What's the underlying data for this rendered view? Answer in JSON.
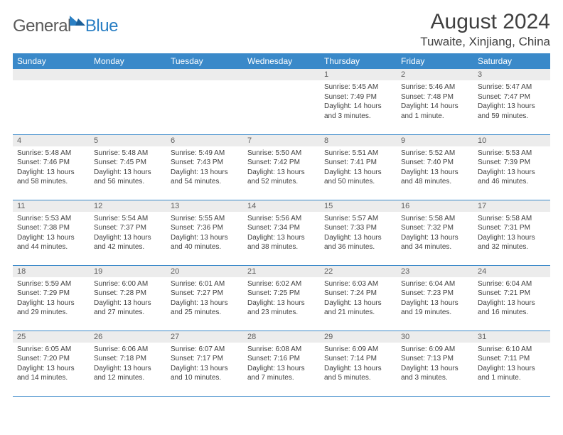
{
  "brand": {
    "part1": "General",
    "part2": "Blue"
  },
  "title": "August 2024",
  "location": "Tuwaite, Xinjiang, China",
  "colors": {
    "header_bg": "#3a89c9",
    "header_text": "#ffffff",
    "daynum_bg": "#ececec",
    "text": "#404040",
    "brand_gray": "#5a5a5a",
    "brand_blue": "#2a7fc4",
    "row_border": "#3a89c9"
  },
  "typography": {
    "title_fontsize": 30,
    "location_fontsize": 17,
    "weekday_fontsize": 12,
    "daynum_fontsize": 11,
    "body_fontsize": 10,
    "logo_fontsize": 24
  },
  "weekdays": [
    "Sunday",
    "Monday",
    "Tuesday",
    "Wednesday",
    "Thursday",
    "Friday",
    "Saturday"
  ],
  "weeks": [
    [
      {
        "n": "",
        "sr": "",
        "ss": "",
        "dl": ""
      },
      {
        "n": "",
        "sr": "",
        "ss": "",
        "dl": ""
      },
      {
        "n": "",
        "sr": "",
        "ss": "",
        "dl": ""
      },
      {
        "n": "",
        "sr": "",
        "ss": "",
        "dl": ""
      },
      {
        "n": "1",
        "sr": "Sunrise: 5:45 AM",
        "ss": "Sunset: 7:49 PM",
        "dl": "Daylight: 14 hours and 3 minutes."
      },
      {
        "n": "2",
        "sr": "Sunrise: 5:46 AM",
        "ss": "Sunset: 7:48 PM",
        "dl": "Daylight: 14 hours and 1 minute."
      },
      {
        "n": "3",
        "sr": "Sunrise: 5:47 AM",
        "ss": "Sunset: 7:47 PM",
        "dl": "Daylight: 13 hours and 59 minutes."
      }
    ],
    [
      {
        "n": "4",
        "sr": "Sunrise: 5:48 AM",
        "ss": "Sunset: 7:46 PM",
        "dl": "Daylight: 13 hours and 58 minutes."
      },
      {
        "n": "5",
        "sr": "Sunrise: 5:48 AM",
        "ss": "Sunset: 7:45 PM",
        "dl": "Daylight: 13 hours and 56 minutes."
      },
      {
        "n": "6",
        "sr": "Sunrise: 5:49 AM",
        "ss": "Sunset: 7:43 PM",
        "dl": "Daylight: 13 hours and 54 minutes."
      },
      {
        "n": "7",
        "sr": "Sunrise: 5:50 AM",
        "ss": "Sunset: 7:42 PM",
        "dl": "Daylight: 13 hours and 52 minutes."
      },
      {
        "n": "8",
        "sr": "Sunrise: 5:51 AM",
        "ss": "Sunset: 7:41 PM",
        "dl": "Daylight: 13 hours and 50 minutes."
      },
      {
        "n": "9",
        "sr": "Sunrise: 5:52 AM",
        "ss": "Sunset: 7:40 PM",
        "dl": "Daylight: 13 hours and 48 minutes."
      },
      {
        "n": "10",
        "sr": "Sunrise: 5:53 AM",
        "ss": "Sunset: 7:39 PM",
        "dl": "Daylight: 13 hours and 46 minutes."
      }
    ],
    [
      {
        "n": "11",
        "sr": "Sunrise: 5:53 AM",
        "ss": "Sunset: 7:38 PM",
        "dl": "Daylight: 13 hours and 44 minutes."
      },
      {
        "n": "12",
        "sr": "Sunrise: 5:54 AM",
        "ss": "Sunset: 7:37 PM",
        "dl": "Daylight: 13 hours and 42 minutes."
      },
      {
        "n": "13",
        "sr": "Sunrise: 5:55 AM",
        "ss": "Sunset: 7:36 PM",
        "dl": "Daylight: 13 hours and 40 minutes."
      },
      {
        "n": "14",
        "sr": "Sunrise: 5:56 AM",
        "ss": "Sunset: 7:34 PM",
        "dl": "Daylight: 13 hours and 38 minutes."
      },
      {
        "n": "15",
        "sr": "Sunrise: 5:57 AM",
        "ss": "Sunset: 7:33 PM",
        "dl": "Daylight: 13 hours and 36 minutes."
      },
      {
        "n": "16",
        "sr": "Sunrise: 5:58 AM",
        "ss": "Sunset: 7:32 PM",
        "dl": "Daylight: 13 hours and 34 minutes."
      },
      {
        "n": "17",
        "sr": "Sunrise: 5:58 AM",
        "ss": "Sunset: 7:31 PM",
        "dl": "Daylight: 13 hours and 32 minutes."
      }
    ],
    [
      {
        "n": "18",
        "sr": "Sunrise: 5:59 AM",
        "ss": "Sunset: 7:29 PM",
        "dl": "Daylight: 13 hours and 29 minutes."
      },
      {
        "n": "19",
        "sr": "Sunrise: 6:00 AM",
        "ss": "Sunset: 7:28 PM",
        "dl": "Daylight: 13 hours and 27 minutes."
      },
      {
        "n": "20",
        "sr": "Sunrise: 6:01 AM",
        "ss": "Sunset: 7:27 PM",
        "dl": "Daylight: 13 hours and 25 minutes."
      },
      {
        "n": "21",
        "sr": "Sunrise: 6:02 AM",
        "ss": "Sunset: 7:25 PM",
        "dl": "Daylight: 13 hours and 23 minutes."
      },
      {
        "n": "22",
        "sr": "Sunrise: 6:03 AM",
        "ss": "Sunset: 7:24 PM",
        "dl": "Daylight: 13 hours and 21 minutes."
      },
      {
        "n": "23",
        "sr": "Sunrise: 6:04 AM",
        "ss": "Sunset: 7:23 PM",
        "dl": "Daylight: 13 hours and 19 minutes."
      },
      {
        "n": "24",
        "sr": "Sunrise: 6:04 AM",
        "ss": "Sunset: 7:21 PM",
        "dl": "Daylight: 13 hours and 16 minutes."
      }
    ],
    [
      {
        "n": "25",
        "sr": "Sunrise: 6:05 AM",
        "ss": "Sunset: 7:20 PM",
        "dl": "Daylight: 13 hours and 14 minutes."
      },
      {
        "n": "26",
        "sr": "Sunrise: 6:06 AM",
        "ss": "Sunset: 7:18 PM",
        "dl": "Daylight: 13 hours and 12 minutes."
      },
      {
        "n": "27",
        "sr": "Sunrise: 6:07 AM",
        "ss": "Sunset: 7:17 PM",
        "dl": "Daylight: 13 hours and 10 minutes."
      },
      {
        "n": "28",
        "sr": "Sunrise: 6:08 AM",
        "ss": "Sunset: 7:16 PM",
        "dl": "Daylight: 13 hours and 7 minutes."
      },
      {
        "n": "29",
        "sr": "Sunrise: 6:09 AM",
        "ss": "Sunset: 7:14 PM",
        "dl": "Daylight: 13 hours and 5 minutes."
      },
      {
        "n": "30",
        "sr": "Sunrise: 6:09 AM",
        "ss": "Sunset: 7:13 PM",
        "dl": "Daylight: 13 hours and 3 minutes."
      },
      {
        "n": "31",
        "sr": "Sunrise: 6:10 AM",
        "ss": "Sunset: 7:11 PM",
        "dl": "Daylight: 13 hours and 1 minute."
      }
    ]
  ]
}
